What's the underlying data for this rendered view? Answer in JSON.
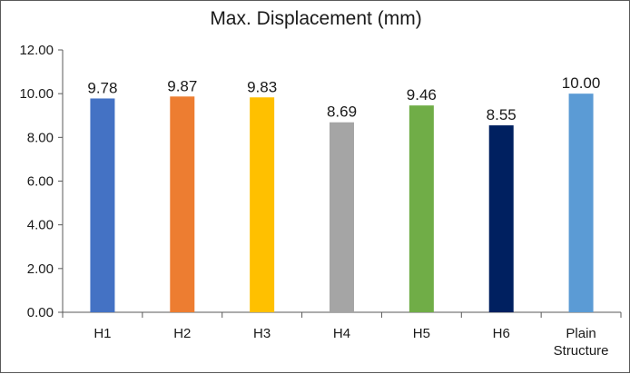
{
  "chart_data": {
    "type": "bar",
    "title": "Max. Displacement (mm)",
    "xlabel": "",
    "ylabel": "",
    "categories": [
      "H1",
      "H2",
      "H3",
      "H4",
      "H5",
      "H6",
      "Plain Structure"
    ],
    "values": [
      9.78,
      9.87,
      9.83,
      8.69,
      9.46,
      8.55,
      10.0
    ],
    "data_labels": [
      "9.78",
      "9.87",
      "9.83",
      "8.69",
      "9.46",
      "8.55",
      "10.00"
    ],
    "colors": [
      "#4472c4",
      "#ed7d31",
      "#ffc000",
      "#a5a5a5",
      "#70ad47",
      "#002060",
      "#5b9bd5"
    ],
    "ylim": [
      0,
      12
    ],
    "yticks": [
      0,
      2,
      4,
      6,
      8,
      10,
      12
    ],
    "ytick_labels": [
      "0.00",
      "2.00",
      "4.00",
      "6.00",
      "8.00",
      "10.00",
      "12.00"
    ],
    "grid": false,
    "legend": "none"
  }
}
